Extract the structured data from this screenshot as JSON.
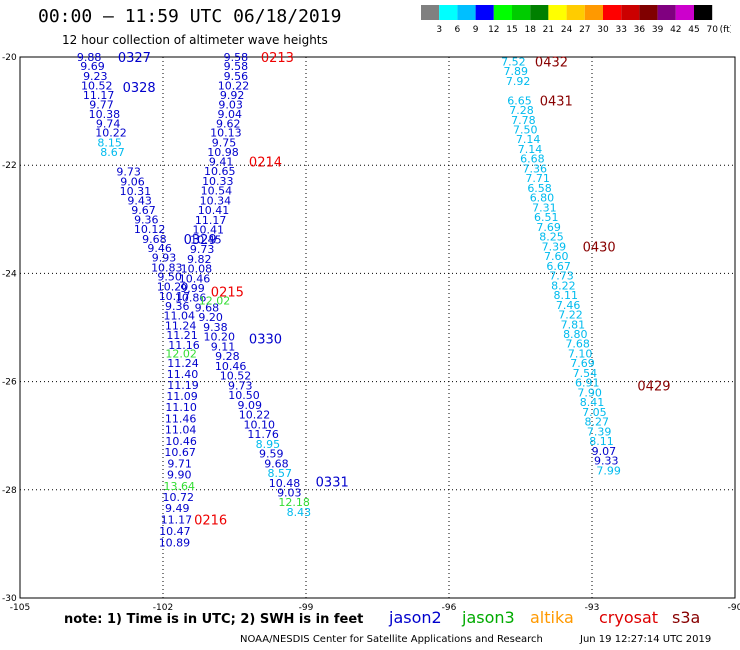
{
  "header": {
    "title": "00:00 – 11:59 UTC 06/18/2019",
    "subtitle": "12 hour collection of altimeter wave heights"
  },
  "colorbar": {
    "labels": [
      "3",
      "6",
      "9",
      "12",
      "15",
      "18",
      "21",
      "24",
      "27",
      "30",
      "33",
      "36",
      "39",
      "42",
      "45",
      "70",
      "(ft)"
    ],
    "colors": [
      "#808080",
      "#00ffff",
      "#00bfff",
      "#0000ff",
      "#00ff00",
      "#00cc00",
      "#008000",
      "#ffff00",
      "#ffcc00",
      "#ff9900",
      "#ff0000",
      "#cc0000",
      "#800000",
      "#800080",
      "#cc00cc",
      "#000000"
    ]
  },
  "footer": {
    "note": "note: 1) Time is in UTC; 2) SWH is in feet",
    "credit": "NOAA/NESDIS Center for Satellite Applications and Research",
    "timestamp": "Jun 19 12:27:14 UTC 2019"
  },
  "satellites": [
    {
      "name": "jason2",
      "color": "#0000cc"
    },
    {
      "name": "jason3",
      "color": "#00aa00"
    },
    {
      "name": "altika",
      "color": "#ff9900"
    },
    {
      "name": "cryosat",
      "color": "#dd0000"
    },
    {
      "name": "s3a",
      "color": "#880000"
    }
  ],
  "chart_data": {
    "type": "scatter",
    "xlim": [
      -105,
      -90
    ],
    "ylim": [
      -30,
      -20
    ],
    "x_ticks": [
      "-105",
      "-102",
      "-99",
      "-96",
      "-93",
      "-90"
    ],
    "y_ticks": [
      "-20",
      "-22",
      "-24",
      "-26",
      "-28",
      "-30"
    ],
    "colors": {
      "dark_blue": "#0000cc",
      "light_blue": "#00bbee",
      "green": "#33dd33",
      "red": "#ee0000",
      "dark_red": "#880000"
    },
    "series": [
      {
        "id": "track_a",
        "color": "dark_blue",
        "points": [
          {
            "x": -103.55,
            "y": -20.0,
            "v": "9.88"
          },
          {
            "x": -103.48,
            "y": -20.17,
            "v": "9.69"
          },
          {
            "x": -103.42,
            "y": -20.35,
            "v": "9.23"
          },
          {
            "x": -103.39,
            "y": -20.53,
            "v": "10.52"
          },
          {
            "x": -103.35,
            "y": -20.7,
            "v": "11.17"
          },
          {
            "x": -103.29,
            "y": -20.88,
            "v": "9.77"
          },
          {
            "x": -103.23,
            "y": -21.05,
            "v": "10.38"
          },
          {
            "x": -103.15,
            "y": -21.23,
            "v": "9.74"
          },
          {
            "x": -103.09,
            "y": -21.4,
            "v": "10.22"
          },
          {
            "x": -102.72,
            "y": -22.12,
            "v": "9.73"
          },
          {
            "x": -102.64,
            "y": -22.3,
            "v": "9.06"
          },
          {
            "x": -102.58,
            "y": -22.48,
            "v": "10.31"
          },
          {
            "x": -102.49,
            "y": -22.65,
            "v": "9.43"
          },
          {
            "x": -102.41,
            "y": -22.83,
            "v": "9.67"
          },
          {
            "x": -102.35,
            "y": -23.0,
            "v": "9.36"
          },
          {
            "x": -102.28,
            "y": -23.18,
            "v": "10.12"
          },
          {
            "x": -102.18,
            "y": -23.36,
            "v": "9.68"
          },
          {
            "x": -102.07,
            "y": -23.53,
            "v": "9.46"
          },
          {
            "x": -101.98,
            "y": -23.71,
            "v": "9.93"
          },
          {
            "x": -101.92,
            "y": -23.89,
            "v": "10.83"
          },
          {
            "x": -101.86,
            "y": -24.06,
            "v": "9.50"
          },
          {
            "x": -101.8,
            "y": -24.24,
            "v": "10.20"
          },
          {
            "x": -101.76,
            "y": -24.42,
            "v": "10.17"
          },
          {
            "x": -101.7,
            "y": -24.6,
            "v": "9.36"
          },
          {
            "x": -101.66,
            "y": -24.78,
            "v": "11.04"
          },
          {
            "x": -101.63,
            "y": -24.96,
            "v": "11.24"
          },
          {
            "x": -101.6,
            "y": -25.14,
            "v": "11.21"
          },
          {
            "x": -101.56,
            "y": -25.32,
            "v": "11.16"
          },
          {
            "x": -101.58,
            "y": -25.66,
            "v": "11.24"
          },
          {
            "x": -101.59,
            "y": -25.86,
            "v": "11.40"
          },
          {
            "x": -101.58,
            "y": -26.06,
            "v": "11.19"
          },
          {
            "x": -101.6,
            "y": -26.27,
            "v": "11.09"
          },
          {
            "x": -101.62,
            "y": -26.47,
            "v": "11.10"
          },
          {
            "x": -101.63,
            "y": -26.68,
            "v": "11.46"
          },
          {
            "x": -101.63,
            "y": -26.89,
            "v": "11.04"
          },
          {
            "x": -101.62,
            "y": -27.1,
            "v": "10.46"
          },
          {
            "x": -101.64,
            "y": -27.3,
            "v": "10.67"
          },
          {
            "x": -101.65,
            "y": -27.51,
            "v": "9.71"
          },
          {
            "x": -101.66,
            "y": -27.72,
            "v": "9.90"
          },
          {
            "x": -101.68,
            "y": -28.13,
            "v": "10.72"
          },
          {
            "x": -101.7,
            "y": -28.34,
            "v": "9.49"
          },
          {
            "x": -101.72,
            "y": -28.55,
            "v": "11.17"
          },
          {
            "x": -101.75,
            "y": -28.76,
            "v": "10.47"
          },
          {
            "x": -101.76,
            "y": -28.97,
            "v": "10.89"
          }
        ]
      },
      {
        "id": "track_a_light",
        "color": "light_blue",
        "points": [
          {
            "x": -103.12,
            "y": -21.58,
            "v": "8.15"
          },
          {
            "x": -103.06,
            "y": -21.76,
            "v": "8.67"
          }
        ]
      },
      {
        "id": "track_a_green",
        "color": "green",
        "points": [
          {
            "x": -101.62,
            "y": -25.48,
            "v": "12.02"
          },
          {
            "x": -101.66,
            "y": -27.93,
            "v": "13.64"
          }
        ]
      },
      {
        "id": "track_b",
        "color": "dark_blue",
        "points": [
          {
            "x": -100.47,
            "y": -20.0,
            "v": "9.58"
          },
          {
            "x": -100.47,
            "y": -20.17,
            "v": "9.58"
          },
          {
            "x": -100.47,
            "y": -20.35,
            "v": "9.56"
          },
          {
            "x": -100.52,
            "y": -20.53,
            "v": "10.22"
          },
          {
            "x": -100.55,
            "y": -20.7,
            "v": "9.92"
          },
          {
            "x": -100.58,
            "y": -20.88,
            "v": "9.03"
          },
          {
            "x": -100.6,
            "y": -21.05,
            "v": "9.04"
          },
          {
            "x": -100.63,
            "y": -21.23,
            "v": "9.62"
          },
          {
            "x": -100.68,
            "y": -21.4,
            "v": "10.13"
          },
          {
            "x": -100.72,
            "y": -21.58,
            "v": "9.75"
          },
          {
            "x": -100.74,
            "y": -21.76,
            "v": "10.98"
          },
          {
            "x": -100.78,
            "y": -21.93,
            "v": "9.41"
          },
          {
            "x": -100.81,
            "y": -22.11,
            "v": "10.65"
          },
          {
            "x": -100.85,
            "y": -22.29,
            "v": "10.33"
          },
          {
            "x": -100.88,
            "y": -22.47,
            "v": "10.54"
          },
          {
            "x": -100.9,
            "y": -22.65,
            "v": "10.34"
          },
          {
            "x": -100.94,
            "y": -22.83,
            "v": "10.41"
          },
          {
            "x": -101.0,
            "y": -23.01,
            "v": "11.17"
          },
          {
            "x": -101.05,
            "y": -23.19,
            "v": "10.41"
          },
          {
            "x": -101.1,
            "y": -23.37,
            "v": "10.45"
          },
          {
            "x": -101.18,
            "y": -23.55,
            "v": "9.73"
          },
          {
            "x": -101.24,
            "y": -23.73,
            "v": "9.82"
          },
          {
            "x": -101.3,
            "y": -23.91,
            "v": "10.08"
          },
          {
            "x": -101.34,
            "y": -24.09,
            "v": "10.46"
          },
          {
            "x": -101.38,
            "y": -24.27,
            "v": "9.99"
          },
          {
            "x": -101.42,
            "y": -24.45,
            "v": "10.86"
          },
          {
            "x": -101.08,
            "y": -24.63,
            "v": "9.68"
          },
          {
            "x": -101.0,
            "y": -24.81,
            "v": "9.20"
          },
          {
            "x": -100.9,
            "y": -24.99,
            "v": "9.38"
          },
          {
            "x": -100.82,
            "y": -25.17,
            "v": "10.20"
          },
          {
            "x": -100.74,
            "y": -25.35,
            "v": "9.11"
          },
          {
            "x": -100.65,
            "y": -25.53,
            "v": "9.28"
          },
          {
            "x": -100.58,
            "y": -25.71,
            "v": "10.46"
          },
          {
            "x": -100.48,
            "y": -25.89,
            "v": "10.52"
          },
          {
            "x": -100.38,
            "y": -26.07,
            "v": "9.73"
          },
          {
            "x": -100.3,
            "y": -26.25,
            "v": "10.50"
          },
          {
            "x": -100.18,
            "y": -26.43,
            "v": "9.09"
          },
          {
            "x": -100.08,
            "y": -26.61,
            "v": "10.22"
          },
          {
            "x": -99.98,
            "y": -26.79,
            "v": "10.10"
          },
          {
            "x": -99.9,
            "y": -26.97,
            "v": "11.76"
          },
          {
            "x": -99.73,
            "y": -27.33,
            "v": "9.59"
          },
          {
            "x": -99.62,
            "y": -27.51,
            "v": "9.68"
          },
          {
            "x": -99.45,
            "y": -27.87,
            "v": "10.48"
          },
          {
            "x": -99.35,
            "y": -28.05,
            "v": "9.03"
          }
        ]
      },
      {
        "id": "track_b_light",
        "color": "light_blue",
        "points": [
          {
            "x": -99.8,
            "y": -27.15,
            "v": "8.95"
          },
          {
            "x": -99.55,
            "y": -27.69,
            "v": "8.57"
          },
          {
            "x": -99.15,
            "y": -28.41,
            "v": "8.43"
          }
        ]
      },
      {
        "id": "track_b_green",
        "color": "green",
        "points": [
          {
            "x": -100.92,
            "y": -24.5,
            "v": "12.02"
          },
          {
            "x": -99.25,
            "y": -28.23,
            "v": "12.18"
          }
        ]
      },
      {
        "id": "track_c",
        "color": "light_blue",
        "points": [
          {
            "x": -94.65,
            "y": -20.08,
            "v": "7.52"
          },
          {
            "x": -94.6,
            "y": -20.26,
            "v": "7.89"
          },
          {
            "x": -94.55,
            "y": -20.44,
            "v": "7.92"
          },
          {
            "x": -94.52,
            "y": -20.8,
            "v": "6.65"
          },
          {
            "x": -94.48,
            "y": -20.98,
            "v": "7.28"
          },
          {
            "x": -94.44,
            "y": -21.16,
            "v": "7.78"
          },
          {
            "x": -94.4,
            "y": -21.34,
            "v": "7.50"
          },
          {
            "x": -94.34,
            "y": -21.52,
            "v": "7.14"
          },
          {
            "x": -94.3,
            "y": -21.7,
            "v": "7.14"
          },
          {
            "x": -94.25,
            "y": -21.88,
            "v": "6.68"
          },
          {
            "x": -94.2,
            "y": -22.06,
            "v": "7.36"
          },
          {
            "x": -94.14,
            "y": -22.24,
            "v": "7.71"
          },
          {
            "x": -94.1,
            "y": -22.42,
            "v": "6.58"
          },
          {
            "x": -94.05,
            "y": -22.6,
            "v": "6.80"
          },
          {
            "x": -94.0,
            "y": -22.78,
            "v": "7.31"
          },
          {
            "x": -93.96,
            "y": -22.96,
            "v": "6.51"
          },
          {
            "x": -93.91,
            "y": -23.14,
            "v": "7.69"
          },
          {
            "x": -93.85,
            "y": -23.32,
            "v": "8.25"
          },
          {
            "x": -93.8,
            "y": -23.5,
            "v": "7.39"
          },
          {
            "x": -93.75,
            "y": -23.68,
            "v": "7.60"
          },
          {
            "x": -93.7,
            "y": -23.86,
            "v": "6.67"
          },
          {
            "x": -93.64,
            "y": -24.04,
            "v": "7.73"
          },
          {
            "x": -93.6,
            "y": -24.22,
            "v": "8.22"
          },
          {
            "x": -93.55,
            "y": -24.4,
            "v": "8.11"
          },
          {
            "x": -93.5,
            "y": -24.58,
            "v": "7.46"
          },
          {
            "x": -93.45,
            "y": -24.76,
            "v": "7.22"
          },
          {
            "x": -93.4,
            "y": -24.94,
            "v": "7.81"
          },
          {
            "x": -93.35,
            "y": -25.12,
            "v": "8.80"
          },
          {
            "x": -93.3,
            "y": -25.3,
            "v": "7.68"
          },
          {
            "x": -93.25,
            "y": -25.48,
            "v": "7.10"
          },
          {
            "x": -93.2,
            "y": -25.66,
            "v": "7.69"
          },
          {
            "x": -93.15,
            "y": -25.84,
            "v": "7.54"
          },
          {
            "x": -93.1,
            "y": -26.02,
            "v": "6.91"
          },
          {
            "x": -93.05,
            "y": -26.2,
            "v": "7.90"
          },
          {
            "x": -93.0,
            "y": -26.38,
            "v": "8.41"
          },
          {
            "x": -92.95,
            "y": -26.56,
            "v": "7.05"
          },
          {
            "x": -92.9,
            "y": -26.74,
            "v": "8.27"
          },
          {
            "x": -92.85,
            "y": -26.92,
            "v": "7.39"
          },
          {
            "x": -92.8,
            "y": -27.1,
            "v": "8.11"
          },
          {
            "x": -92.65,
            "y": -27.64,
            "v": "7.99"
          }
        ]
      },
      {
        "id": "track_c_dark",
        "color": "dark_blue",
        "points": [
          {
            "x": -92.75,
            "y": -27.28,
            "v": "9.07"
          },
          {
            "x": -92.7,
            "y": -27.46,
            "v": "9.33"
          }
        ]
      }
    ],
    "time_labels": [
      {
        "text": "0327",
        "x": -102.6,
        "y": -20.0,
        "color": "dark_blue"
      },
      {
        "text": "0328",
        "x": -102.5,
        "y": -20.55,
        "color": "dark_blue"
      },
      {
        "text": "0329",
        "x": -101.22,
        "y": -23.36,
        "color": "dark_blue"
      },
      {
        "text": "0330",
        "x": -99.85,
        "y": -25.2,
        "color": "dark_blue"
      },
      {
        "text": "0331",
        "x": -98.45,
        "y": -27.85,
        "color": "dark_blue"
      },
      {
        "text": "0213",
        "x": -99.6,
        "y": -20.0,
        "color": "red"
      },
      {
        "text": "0214",
        "x": -99.85,
        "y": -21.93,
        "color": "red"
      },
      {
        "text": "0215",
        "x": -100.65,
        "y": -24.33,
        "color": "red"
      },
      {
        "text": "0216",
        "x": -101.0,
        "y": -28.55,
        "color": "red"
      },
      {
        "text": "0432",
        "x": -93.85,
        "y": -20.08,
        "color": "dark_red"
      },
      {
        "text": "0431",
        "x": -93.75,
        "y": -20.8,
        "color": "dark_red"
      },
      {
        "text": "0430",
        "x": -92.85,
        "y": -23.5,
        "color": "dark_red"
      },
      {
        "text": "0429",
        "x": -91.7,
        "y": -26.07,
        "color": "dark_red"
      }
    ]
  }
}
